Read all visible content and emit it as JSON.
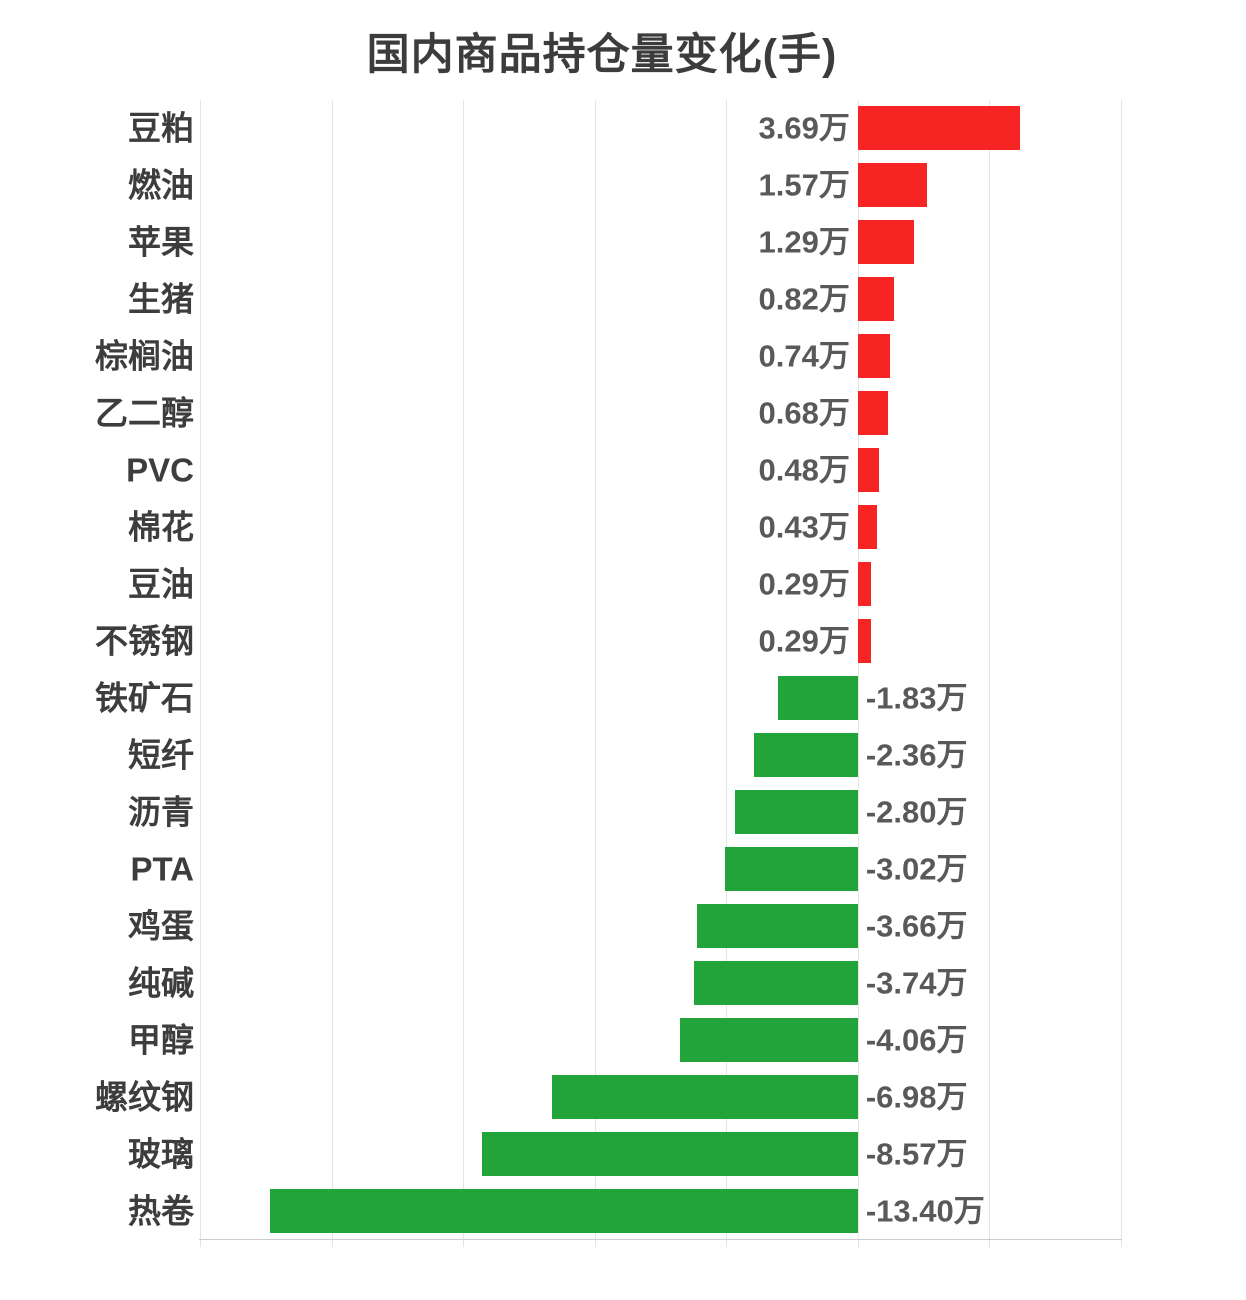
{
  "title": "国内商品持仓量变化(手)",
  "colors": {
    "positive_bar": "#f62423",
    "negative_bar": "#22a43a",
    "value_label": "#595959",
    "category_label": "#3d3d3d",
    "title": "#3c3c3c",
    "gridline": "#e4e4e4",
    "axis_line": "#cccccc",
    "background": "#ffffff"
  },
  "chart_data": {
    "type": "bar",
    "orientation": "horizontal",
    "title": "国内商品持仓量变化(手)",
    "unit": "万 (手)",
    "categories": [
      "豆粕",
      "燃油",
      "苹果",
      "生猪",
      "棕榈油",
      "乙二醇",
      "PVC",
      "棉花",
      "豆油",
      "不锈钢",
      "铁矿石",
      "短纤",
      "沥青",
      "PTA",
      "鸡蛋",
      "纯碱",
      "甲醇",
      "螺纹钢",
      "玻璃",
      "热卷"
    ],
    "values": [
      3.69,
      1.57,
      1.29,
      0.82,
      0.74,
      0.68,
      0.48,
      0.43,
      0.29,
      0.29,
      -1.83,
      -2.36,
      -2.8,
      -3.02,
      -3.66,
      -3.74,
      -4.06,
      -6.98,
      -8.57,
      -13.4
    ],
    "value_labels": [
      "3.69万",
      "1.57万",
      "1.29万",
      "0.82万",
      "0.74万",
      "0.68万",
      "0.48万",
      "0.43万",
      "0.29万",
      "0.29万",
      "-1.83万",
      "-2.36万",
      "-2.80万",
      "-3.02万",
      "-3.66万",
      "-3.74万",
      "-4.06万",
      "-6.98万",
      "-8.57万",
      "-13.40万"
    ],
    "xlim": [
      -15,
      6
    ],
    "grid_step": 3,
    "grid": true,
    "legend": false,
    "axis_tick_labels_visible": false,
    "label_position": "base-opposite-side"
  }
}
